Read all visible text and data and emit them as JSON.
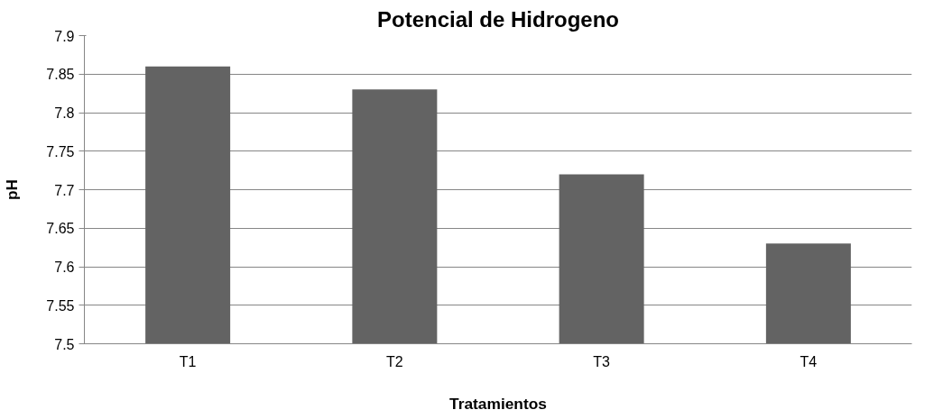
{
  "chart_data": {
    "type": "bar",
    "title": "Potencial de Hidrogeno",
    "xlabel": "Tratamientos",
    "ylabel": "pH",
    "categories": [
      "T1",
      "T2",
      "T3",
      "T4"
    ],
    "values": [
      7.86,
      7.83,
      7.72,
      7.63
    ],
    "color": "#636363",
    "ylim": [
      7.5,
      7.9
    ],
    "yticks": [
      7.5,
      7.55,
      7.6,
      7.65,
      7.7,
      7.75,
      7.8,
      7.85,
      7.9
    ],
    "grid": "y"
  }
}
